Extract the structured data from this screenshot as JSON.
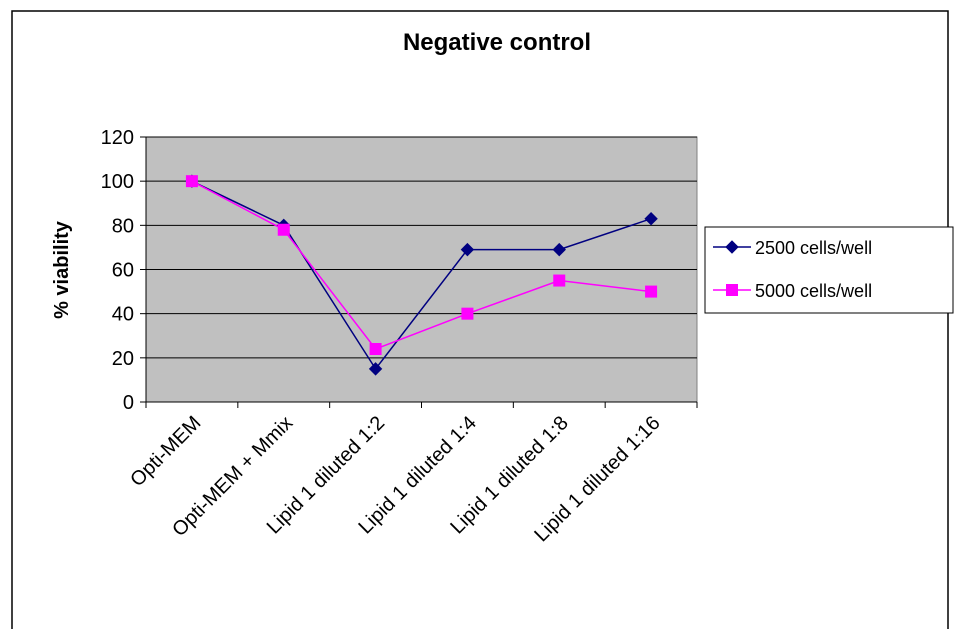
{
  "chart_data": {
    "type": "line",
    "title": "Negative control",
    "xlabel": "",
    "ylabel": "% viability",
    "ylim": [
      0,
      120
    ],
    "yticks": [
      "0",
      "20",
      "40",
      "60",
      "80",
      "100",
      "120"
    ],
    "grid": true,
    "legend_position": "right",
    "categories": [
      "Opti-MEM",
      "Opti-MEM + Mmix",
      "Lipid 1 diluted 1:2",
      "Lipid 1 diluted 1:4",
      "Lipid 1 diluted 1:8",
      "Lipid 1 diluted 1:16"
    ],
    "series": [
      {
        "name": "2500 cells/well",
        "values": [
          100,
          80,
          15,
          69,
          69,
          83
        ],
        "color": "#000080",
        "marker": "diamond"
      },
      {
        "name": "5000 cells/well",
        "values": [
          100,
          78,
          24,
          40,
          55,
          50
        ],
        "color": "#ff00ff",
        "marker": "square"
      }
    ],
    "plot_background": "#c0c0c0"
  }
}
